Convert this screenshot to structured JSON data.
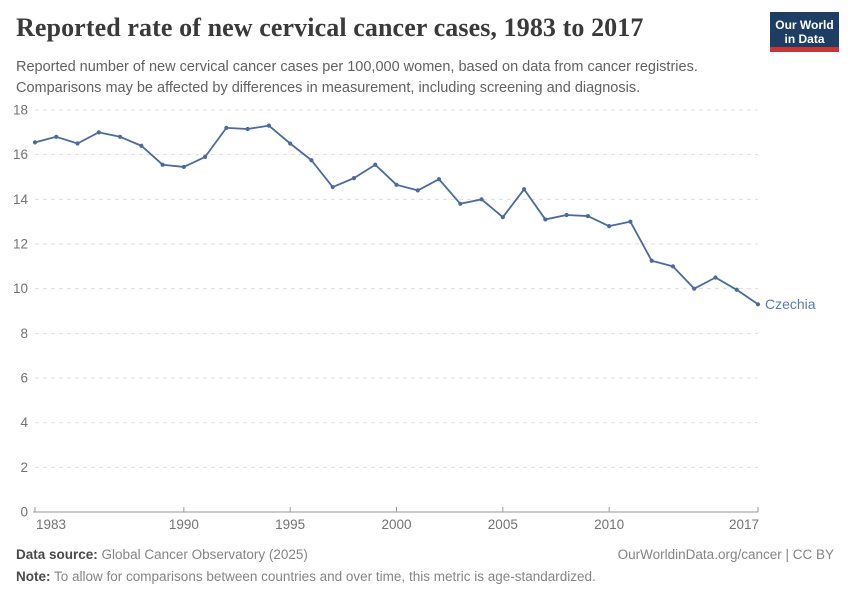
{
  "header": {
    "title": "Reported rate of new cervical cancer cases, 1983 to 2017",
    "subtitle": "Reported number of new cervical cancer cases per 100,000 women, based on data from cancer registries. Comparisons may be affected by differences in measurement, including screening and diagnosis.",
    "logo": {
      "line1": "Our World",
      "line2": "in Data",
      "bg_color": "#1d3d63",
      "bar_color": "#cb3335"
    }
  },
  "chart_data": {
    "type": "line",
    "title": "Reported rate of new cervical cancer cases, 1983 to 2017",
    "xlabel": "",
    "ylabel": "",
    "x": [
      1983,
      1984,
      1985,
      1986,
      1987,
      1988,
      1989,
      1990,
      1991,
      1992,
      1993,
      1994,
      1995,
      1996,
      1997,
      1998,
      1999,
      2000,
      2001,
      2002,
      2003,
      2004,
      2005,
      2006,
      2007,
      2008,
      2009,
      2010,
      2011,
      2012,
      2013,
      2014,
      2015,
      2016,
      2017
    ],
    "series": [
      {
        "name": "Czechia",
        "color": "#4C6A9C",
        "values": [
          16.55,
          16.8,
          16.5,
          17.0,
          16.8,
          16.4,
          15.55,
          15.45,
          15.9,
          17.2,
          17.15,
          17.3,
          16.5,
          15.75,
          14.55,
          14.95,
          15.55,
          14.65,
          14.4,
          14.9,
          13.8,
          14.0,
          13.2,
          14.45,
          13.1,
          13.3,
          13.25,
          12.8,
          13.0,
          11.25,
          11.0,
          10.0,
          10.5,
          9.95,
          9.3
        ]
      }
    ],
    "ylim": [
      0,
      18
    ],
    "yticks": [
      0,
      2,
      4,
      6,
      8,
      10,
      12,
      14,
      16,
      18
    ],
    "xticks": [
      1983,
      1990,
      1995,
      2000,
      2005,
      2010,
      2017
    ],
    "grid": "horizontal-dashed",
    "legend": "line-end-label",
    "entity_label_color": "#5b7ab2",
    "grid_color": "#dddddd",
    "axis_color": "#9a9a9a",
    "tick_label_color": "#737373"
  },
  "footer": {
    "data_source_label": "Data source:",
    "data_source_value": "Global Cancer Observatory (2025)",
    "link_text": "OurWorldinData.org/cancer | CC BY",
    "note_label": "Note:",
    "note_value": "To allow for comparisons between countries and over time, this metric is age-standardized."
  }
}
